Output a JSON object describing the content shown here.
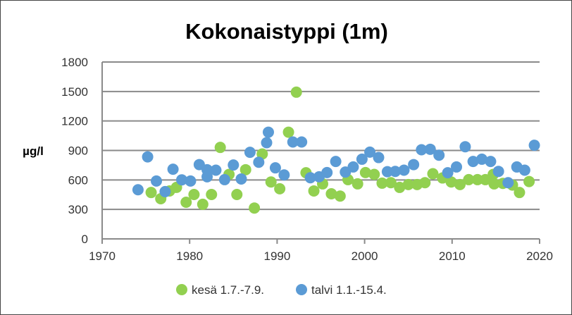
{
  "chart_data": {
    "type": "scatter",
    "title": "Kokonaistyppi (1m)",
    "xlabel": "",
    "ylabel": "µg/l",
    "xlim": [
      1970,
      2020
    ],
    "ylim": [
      0,
      1800
    ],
    "xticks": [
      1970,
      1980,
      1990,
      2000,
      2010,
      2020
    ],
    "yticks": [
      0,
      300,
      600,
      900,
      1200,
      1500,
      1800
    ],
    "grid": "horizontal",
    "legend": "bottom",
    "series": [
      {
        "name": "kesä 1.7.-7.9.",
        "color": "#92D050",
        "points": [
          [
            1975.6,
            472
          ],
          [
            1976.7,
            409
          ],
          [
            1977.7,
            488
          ],
          [
            1978.5,
            524
          ],
          [
            1979.6,
            373
          ],
          [
            1980.5,
            452
          ],
          [
            1981.5,
            352
          ],
          [
            1982.5,
            452
          ],
          [
            1983.5,
            931
          ],
          [
            1984.5,
            656
          ],
          [
            1985.4,
            452
          ],
          [
            1986.4,
            704
          ],
          [
            1987.4,
            314
          ],
          [
            1988.3,
            864
          ],
          [
            1989.3,
            579
          ],
          [
            1990.3,
            510
          ],
          [
            1991.3,
            1086
          ],
          [
            1992.2,
            1493
          ],
          [
            1993.3,
            673
          ],
          [
            1994.2,
            488
          ],
          [
            1995.2,
            560
          ],
          [
            1996.2,
            459
          ],
          [
            1997.2,
            436
          ],
          [
            1998.1,
            603
          ],
          [
            1999.2,
            560
          ],
          [
            2000.1,
            675
          ],
          [
            2001.1,
            656
          ],
          [
            2002.0,
            567
          ],
          [
            2003.0,
            572
          ],
          [
            2004.0,
            524
          ],
          [
            2005.0,
            553
          ],
          [
            2006.0,
            553
          ],
          [
            2006.9,
            572
          ],
          [
            2007.8,
            663
          ],
          [
            2008.9,
            620
          ],
          [
            2009.9,
            579
          ],
          [
            2010.9,
            553
          ],
          [
            2011.9,
            603
          ],
          [
            2012.9,
            603
          ],
          [
            2013.8,
            603
          ],
          [
            2014.7,
            656
          ],
          [
            2014.8,
            560
          ],
          [
            2015.8,
            565
          ],
          [
            2016.9,
            548
          ],
          [
            2017.7,
            472
          ],
          [
            2018.8,
            584
          ]
        ]
      },
      {
        "name": "talvi 1.1.-15.4.",
        "color": "#5B9BD5",
        "points": [
          [
            1974.1,
            500
          ],
          [
            1975.2,
            835
          ],
          [
            1976.2,
            589
          ],
          [
            1977.2,
            481
          ],
          [
            1978.1,
            709
          ],
          [
            1979.1,
            601
          ],
          [
            1980.1,
            589
          ],
          [
            1981.1,
            756
          ],
          [
            1982.0,
            632
          ],
          [
            1982.0,
            704
          ],
          [
            1983.0,
            699
          ],
          [
            1984.0,
            603
          ],
          [
            1985.0,
            752
          ],
          [
            1985.9,
            610
          ],
          [
            1986.9,
            881
          ],
          [
            1987.9,
            780
          ],
          [
            1988.8,
            979
          ],
          [
            1989.0,
            1086
          ],
          [
            1989.8,
            723
          ],
          [
            1990.8,
            651
          ],
          [
            1991.8,
            986
          ],
          [
            1992.8,
            986
          ],
          [
            1993.8,
            622
          ],
          [
            1994.8,
            632
          ],
          [
            1995.7,
            675
          ],
          [
            1996.7,
            788
          ],
          [
            1997.8,
            680
          ],
          [
            1998.7,
            732
          ],
          [
            1999.7,
            811
          ],
          [
            2000.6,
            883
          ],
          [
            2001.6,
            828
          ],
          [
            2002.6,
            684
          ],
          [
            2003.5,
            687
          ],
          [
            2004.5,
            699
          ],
          [
            2005.6,
            756
          ],
          [
            2006.5,
            907
          ],
          [
            2007.5,
            912
          ],
          [
            2008.5,
            852
          ],
          [
            2009.5,
            673
          ],
          [
            2010.5,
            732
          ],
          [
            2011.5,
            938
          ],
          [
            2012.4,
            788
          ],
          [
            2013.4,
            811
          ],
          [
            2014.4,
            788
          ],
          [
            2015.3,
            687
          ],
          [
            2016.4,
            572
          ],
          [
            2017.4,
            732
          ],
          [
            2018.3,
            699
          ],
          [
            2019.4,
            953
          ]
        ]
      }
    ]
  }
}
